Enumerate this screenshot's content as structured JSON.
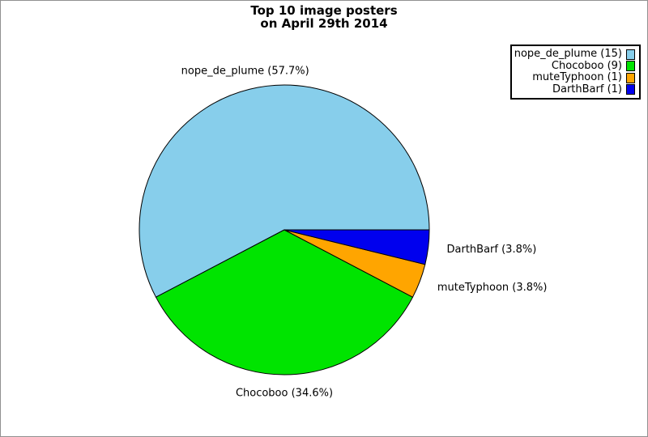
{
  "window": {
    "background_color": "#ffffff",
    "border_color": "#909090"
  },
  "chart_data": {
    "type": "pie",
    "title": "Top 10 image posters\non April 29th 2014",
    "title_lines": [
      "Top 10 image posters",
      "on April 29th 2014"
    ],
    "categories": [
      "nope_de_plume",
      "Chocoboo",
      "muteTyphoon",
      "DarthBarf"
    ],
    "values": [
      15,
      9,
      1,
      1
    ],
    "percentages": [
      57.7,
      34.6,
      3.8,
      3.8
    ],
    "slice_labels": [
      "nope_de_plume (57.7%)",
      "Chocoboo (34.6%)",
      "muteTyphoon (3.8%)",
      "DarthBarf (3.8%)"
    ],
    "legend_labels": [
      "nope_de_plume (15)",
      "Chocoboo (9)",
      "muteTyphoon (1)",
      "DarthBarf (1)"
    ],
    "colors": [
      "#87CEEB",
      "#00E400",
      "#FFA500",
      "#0000EE"
    ],
    "outline_color": "#000000",
    "start_angle_deg": 0,
    "direction": "counterclockwise",
    "legend_position": "top-right",
    "label_color": "#000000"
  }
}
